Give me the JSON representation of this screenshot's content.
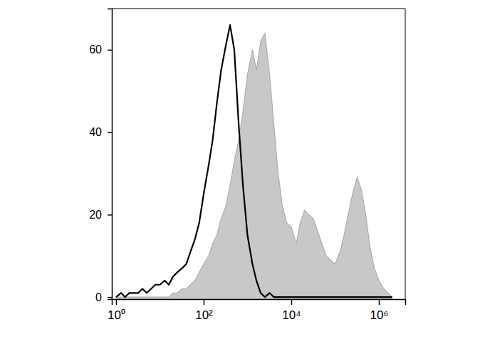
{
  "chart_data": {
    "type": "line",
    "log": "x",
    "xlim": [
      0.8,
      4000000
    ],
    "ylim": [
      -0.5,
      70
    ],
    "xticks": [
      {
        "value": 1,
        "label": "10⁰"
      },
      {
        "value": 100,
        "label": "10²"
      },
      {
        "value": 10000,
        "label": "10⁴"
      },
      {
        "value": 1000000,
        "label": "10⁶"
      }
    ],
    "yticks": [
      0,
      20,
      40,
      60
    ],
    "x": [
      1,
      1.3,
      1.6,
      2,
      2.5,
      3.2,
      4,
      5,
      6.3,
      7.9,
      10,
      13,
      16,
      20,
      25,
      32,
      40,
      50,
      63,
      79,
      100,
      130,
      160,
      200,
      250,
      320,
      400,
      500,
      630,
      790,
      1000,
      1300,
      1600,
      2000,
      2500,
      3200,
      4000,
      5000,
      6300,
      7900,
      10000,
      13000,
      16000,
      20000,
      25000,
      32000,
      40000,
      50000,
      63000,
      79000,
      100000,
      130000,
      160000,
      200000,
      250000,
      320000,
      400000,
      500000,
      630000,
      790000,
      1000000,
      1300000,
      1600000,
      2000000
    ],
    "series": [
      {
        "type": "area",
        "color": "#c8c8c8",
        "values": [
          0,
          0,
          0,
          0,
          0,
          0,
          0,
          0,
          0,
          0,
          0,
          0,
          0,
          1,
          1,
          2,
          2,
          3,
          4,
          6,
          8,
          10,
          13,
          15,
          19,
          22,
          27,
          33,
          38,
          45,
          54,
          60,
          55,
          62,
          64,
          54,
          42,
          30,
          22,
          18,
          17,
          13,
          18,
          21,
          20,
          19,
          16,
          13,
          10,
          9,
          8,
          11,
          15,
          20,
          25,
          29,
          26,
          20,
          12,
          7,
          4,
          2,
          1,
          0
        ]
      },
      {
        "type": "line",
        "color": "#000000",
        "values": [
          0,
          1,
          0,
          1,
          1,
          1,
          2,
          1,
          2,
          3,
          3,
          4,
          3,
          5,
          6,
          7,
          8,
          11,
          14,
          18,
          25,
          32,
          38,
          47,
          55,
          61,
          66,
          60,
          42,
          27,
          15,
          8,
          4,
          1,
          0,
          1,
          0,
          0,
          0,
          0,
          0,
          0,
          0,
          0,
          0,
          0,
          0,
          0,
          0,
          0,
          0,
          0,
          0,
          0,
          0,
          0,
          0,
          0,
          0,
          0,
          0,
          0,
          0,
          0
        ]
      }
    ]
  }
}
